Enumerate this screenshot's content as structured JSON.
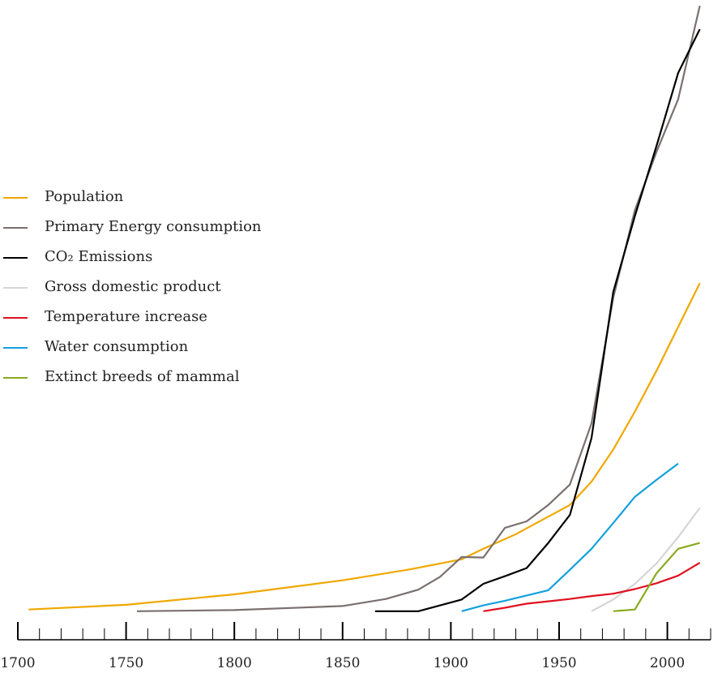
{
  "chart_data": {
    "type": "line",
    "xlim": [
      1700,
      2020
    ],
    "x_ticks": [
      1700,
      1750,
      1800,
      1850,
      1900,
      1950,
      2000
    ],
    "x_tick_labels": [
      "1700",
      "1750",
      "1800",
      "1850",
      "1900",
      "1950",
      "2000"
    ],
    "minor_tick_step": 10,
    "ylim": [
      0,
      100
    ],
    "legend_position": "middle-left",
    "grid": false,
    "series": [
      {
        "name": "Population",
        "color": "#f0a800",
        "points": [
          [
            1705,
            0.6
          ],
          [
            1750,
            1.4
          ],
          [
            1800,
            3.2
          ],
          [
            1850,
            5.6
          ],
          [
            1880,
            7.4
          ],
          [
            1905,
            9.2
          ],
          [
            1915,
            11
          ],
          [
            1930,
            13.5
          ],
          [
            1945,
            16.5
          ],
          [
            1955,
            18.5
          ],
          [
            1965,
            22.5
          ],
          [
            1975,
            28
          ],
          [
            1985,
            34.5
          ],
          [
            1995,
            41.5
          ],
          [
            2005,
            49
          ],
          [
            2015,
            56.5
          ]
        ]
      },
      {
        "name": "Primary Energy consumption",
        "color": "#7a7070",
        "points": [
          [
            1755,
            0.3
          ],
          [
            1800,
            0.5
          ],
          [
            1850,
            1.2
          ],
          [
            1870,
            2.4
          ],
          [
            1885,
            4
          ],
          [
            1895,
            6.2
          ],
          [
            1905,
            9.6
          ],
          [
            1915,
            9.5
          ],
          [
            1925,
            14.6
          ],
          [
            1935,
            15.7
          ],
          [
            1945,
            18.5
          ],
          [
            1955,
            22
          ],
          [
            1965,
            32.5
          ],
          [
            1975,
            54
          ],
          [
            1985,
            69
          ],
          [
            1995,
            79
          ],
          [
            2005,
            88
          ],
          [
            2015,
            104
          ]
        ]
      },
      {
        "name": "CO₂ Emissions",
        "color": "#000000",
        "points": [
          [
            1865,
            0.3
          ],
          [
            1885,
            0.3
          ],
          [
            1905,
            2.3
          ],
          [
            1915,
            5
          ],
          [
            1925,
            6.3
          ],
          [
            1935,
            7.7
          ],
          [
            1945,
            12
          ],
          [
            1955,
            16.8
          ],
          [
            1965,
            30
          ],
          [
            1975,
            55
          ],
          [
            1985,
            68
          ],
          [
            1995,
            80
          ],
          [
            2005,
            92.5
          ],
          [
            2015,
            100
          ]
        ]
      },
      {
        "name": "Gross domestic product",
        "color": "#d5d5d5",
        "points": [
          [
            1965,
            0.3
          ],
          [
            1975,
            2.3
          ],
          [
            1985,
            5
          ],
          [
            1995,
            8.5
          ],
          [
            2005,
            13
          ],
          [
            2015,
            18
          ]
        ]
      },
      {
        "name": "Temperature increase",
        "color": "#e0101e",
        "points": [
          [
            1915,
            0.3
          ],
          [
            1925,
            0.9
          ],
          [
            1935,
            1.6
          ],
          [
            1945,
            2
          ],
          [
            1955,
            2.4
          ],
          [
            1965,
            2.9
          ],
          [
            1975,
            3.3
          ],
          [
            1985,
            4.1
          ],
          [
            1995,
            5.1
          ],
          [
            2005,
            6.4
          ],
          [
            2015,
            8.6
          ]
        ]
      },
      {
        "name": "Water consumption",
        "color": "#14a0dc",
        "points": [
          [
            1905,
            0.3
          ],
          [
            1915,
            1.3
          ],
          [
            1925,
            2.1
          ],
          [
            1935,
            3
          ],
          [
            1945,
            3.9
          ],
          [
            1955,
            7.4
          ],
          [
            1965,
            11
          ],
          [
            1975,
            15.4
          ],
          [
            1985,
            19.9
          ],
          [
            1995,
            22.8
          ],
          [
            2005,
            25.6
          ]
        ]
      },
      {
        "name": "Extinct breeds of mammal",
        "color": "#8aaa20",
        "points": [
          [
            1975,
            0.3
          ],
          [
            1985,
            0.6
          ],
          [
            1995,
            6.8
          ],
          [
            2005,
            11
          ],
          [
            2015,
            12
          ]
        ]
      }
    ]
  }
}
